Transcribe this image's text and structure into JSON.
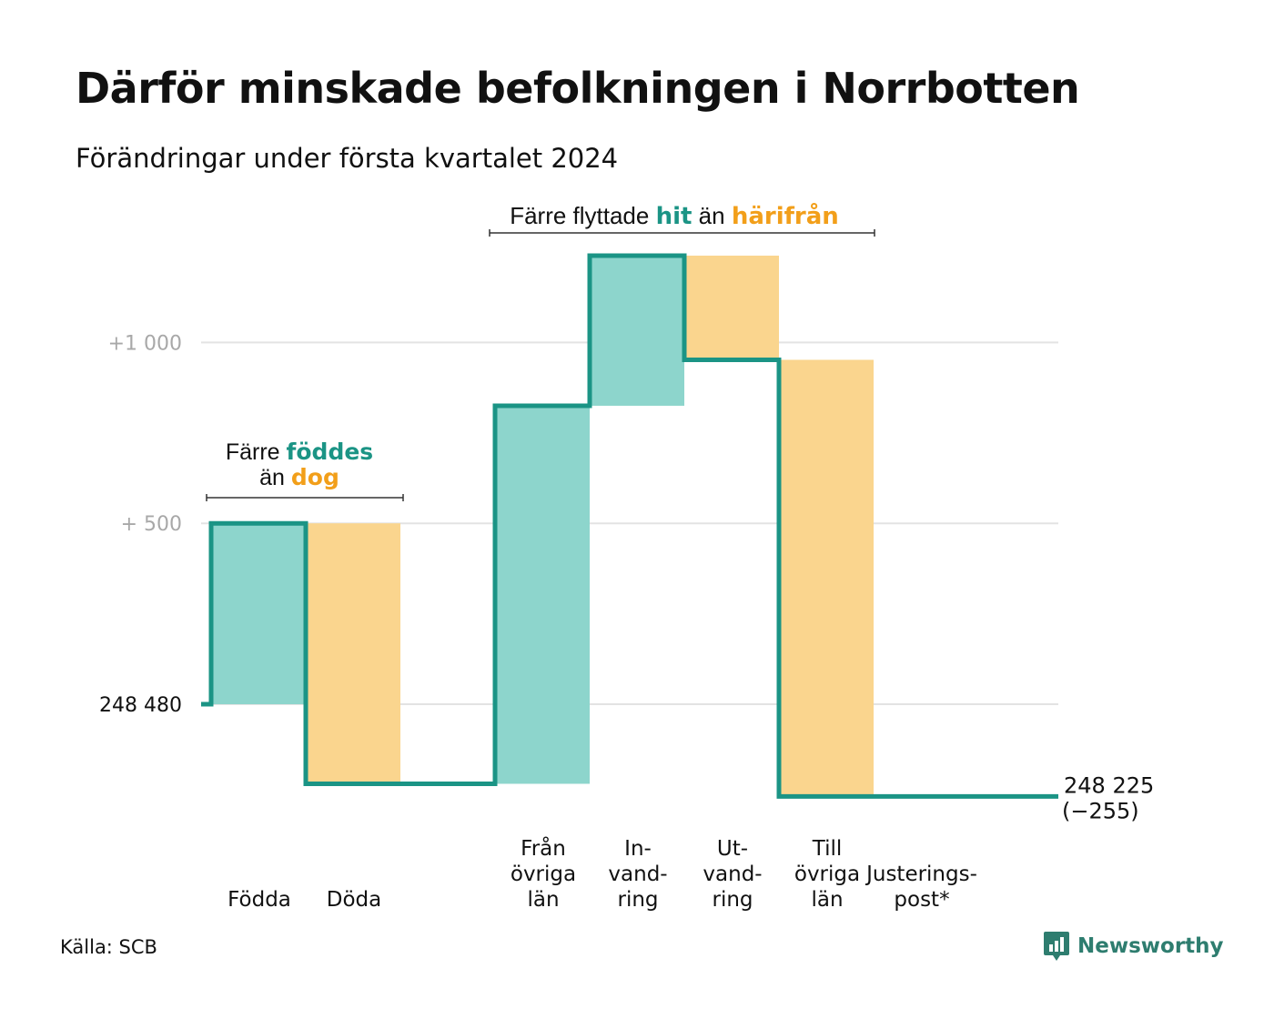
{
  "title": "Därför minskade befolkningen i Norrbotten",
  "subtitle": "Förändringar under första kvartalet 2024",
  "source": "Källa: SCB",
  "logo_text": "Newsworthy",
  "colors": {
    "increase": "#8dd5cc",
    "decrease": "#fad58e",
    "line": "#1b9485",
    "teal_text": "#1b9485",
    "orange_text": "#f29f1a",
    "grid": "#e3e3e3",
    "tick": "#a8a8a8"
  },
  "annotations": {
    "births_deaths": {
      "line1_prefix": "Färre",
      "line1_emph": "föddes",
      "line2_prefix": "än",
      "line2_emph": "dog"
    },
    "migration": {
      "prefix": "Färre flyttade",
      "emph1": "hit",
      "middle": "än",
      "emph2": "härifrån"
    }
  },
  "chart_data": {
    "type": "waterfall",
    "start_value": 248480,
    "start_label": "248  480",
    "end_value": 248225,
    "end_label": "248 225",
    "end_change_label": "(−255)",
    "y_ticks": [
      {
        "value": 248980,
        "label": "+   500"
      },
      {
        "value": 249480,
        "label": "+1   000"
      }
    ],
    "ylim": [
      248100,
      249800
    ],
    "grid": true,
    "steps": [
      {
        "label": [
          "Födda"
        ],
        "change": 500,
        "kind": "increase"
      },
      {
        "label": [
          "Döda"
        ],
        "change": -720,
        "kind": "decrease"
      },
      {
        "label": [],
        "change": 0,
        "kind": "gap"
      },
      {
        "label": [
          "Från",
          "övriga",
          "län"
        ],
        "change": 1045,
        "kind": "increase"
      },
      {
        "label": [
          "In-",
          "vand-",
          "ring"
        ],
        "change": 415,
        "kind": "increase"
      },
      {
        "label": [
          "Ut-",
          "vand-",
          "ring"
        ],
        "change": -288,
        "kind": "decrease"
      },
      {
        "label": [
          "Till",
          "övriga",
          "län"
        ],
        "change": -1207,
        "kind": "decrease"
      },
      {
        "label": [
          "Justerings-",
          "post*"
        ],
        "change": 0,
        "kind": "adjustment"
      }
    ]
  }
}
